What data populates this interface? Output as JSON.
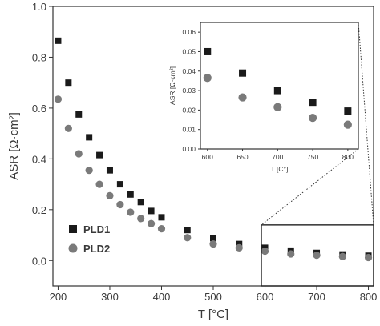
{
  "chart_data": [
    {
      "type": "scatter",
      "xlabel": "T [°C]",
      "ylabel": "ASR [Ω·cm²]",
      "xlim": [
        190,
        810
      ],
      "ylim": [
        -0.1,
        1.0
      ],
      "xticks": [
        "200",
        "300",
        "400",
        "500",
        "600",
        "700",
        "800"
      ],
      "yticks": [
        "0.0",
        "0.2",
        "0.4",
        "0.6",
        "0.8",
        "1.0"
      ],
      "legend_position": "bottom-left",
      "series": [
        {
          "name": "PLD1",
          "marker": "square",
          "color": "#1a1a1a",
          "x": [
            200,
            220,
            240,
            260,
            280,
            300,
            320,
            340,
            360,
            380,
            400,
            450,
            500,
            550,
            600,
            650,
            700,
            750,
            800
          ],
          "y": [
            0.865,
            0.7,
            0.575,
            0.485,
            0.415,
            0.355,
            0.3,
            0.26,
            0.23,
            0.195,
            0.17,
            0.12,
            0.088,
            0.065,
            0.05,
            0.039,
            0.03,
            0.024,
            0.019
          ]
        },
        {
          "name": "PLD2",
          "marker": "circle",
          "color": "#7a7a7a",
          "x": [
            200,
            220,
            240,
            260,
            280,
            300,
            320,
            340,
            360,
            380,
            400,
            450,
            500,
            550,
            600,
            650,
            700,
            750,
            800
          ],
          "y": [
            0.635,
            0.52,
            0.42,
            0.355,
            0.3,
            0.255,
            0.22,
            0.19,
            0.165,
            0.145,
            0.125,
            0.09,
            0.065,
            0.05,
            0.037,
            0.026,
            0.021,
            0.016,
            0.012
          ]
        }
      ],
      "zoom_box": {
        "x": [
          593,
          810
        ],
        "y": [
          -0.1,
          0.14
        ]
      }
    },
    {
      "type": "scatter",
      "role": "inset",
      "xlabel": "T [C°]",
      "ylabel": "ASR [Ω·cm²]",
      "xlim": [
        590,
        815
      ],
      "ylim": [
        0,
        0.065
      ],
      "xticks": [
        "600",
        "650",
        "700",
        "750",
        "800"
      ],
      "yticks": [
        "0.00",
        "0.01",
        "0.02",
        "0.03",
        "0.04",
        "0.05",
        "0.06"
      ],
      "series": [
        {
          "name": "PLD1",
          "marker": "square",
          "color": "#1a1a1a",
          "x": [
            600,
            650,
            700,
            750,
            800
          ],
          "y": [
            0.05,
            0.039,
            0.03,
            0.024,
            0.0195
          ]
        },
        {
          "name": "PLD2",
          "marker": "circle",
          "color": "#7a7a7a",
          "x": [
            600,
            650,
            700,
            750,
            800
          ],
          "y": [
            0.0365,
            0.0265,
            0.0215,
            0.016,
            0.0125
          ]
        }
      ]
    }
  ]
}
